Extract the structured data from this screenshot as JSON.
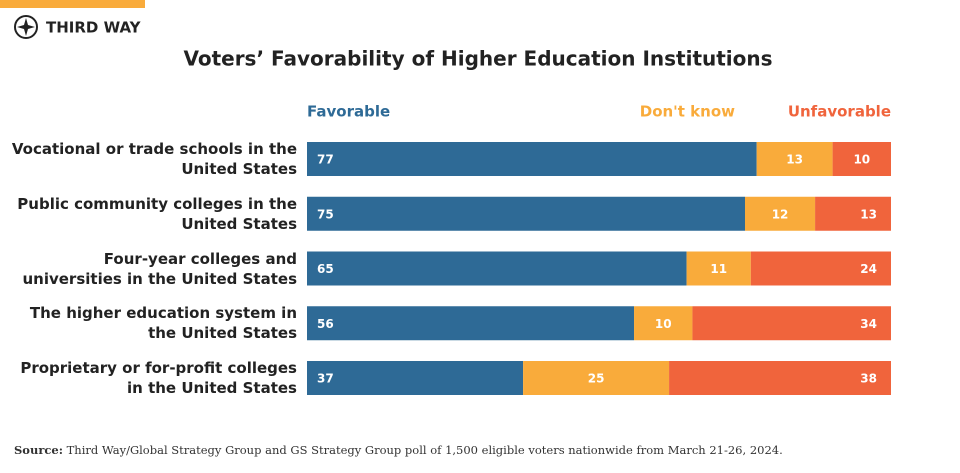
{
  "brand": "THIRD WAY",
  "chart_data": {
    "type": "stacked-bar-horizontal",
    "title": "Voters’ Favorability of Higher Education Institutions",
    "categories": [
      "Vocational or trade schools in the United States",
      "Public community colleges in the United States",
      "Four-year colleges and universities in the United States",
      "The higher education system in the United States",
      "Proprietary or for-profit colleges in the United States"
    ],
    "series": [
      {
        "name": "Favorable",
        "color": "#2e6a96",
        "values": [
          77,
          75,
          65,
          56,
          37
        ]
      },
      {
        "name": "Don't know",
        "color": "#f9ab3b",
        "values": [
          13,
          12,
          11,
          10,
          25
        ]
      },
      {
        "name": "Unfavorable",
        "color": "#f0643c",
        "values": [
          10,
          13,
          24,
          34,
          38
        ]
      }
    ],
    "xlim": [
      0,
      100
    ],
    "legend": "top",
    "source_label": "Source:",
    "source": "Third Way/Global Strategy Group and GS Strategy Group poll of 1,500 eligible voters nationwide from March 21-26, 2024."
  }
}
